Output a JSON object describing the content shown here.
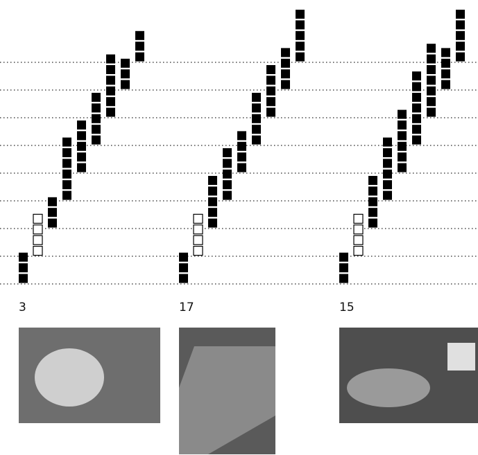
{
  "groups": [
    {
      "label": "3",
      "columns": [
        {
          "count": 3,
          "hollow": false
        },
        {
          "count": 4,
          "hollow": true
        },
        {
          "count": 3,
          "hollow": false
        },
        {
          "count": 6,
          "hollow": false
        },
        {
          "count": 5,
          "hollow": false
        },
        {
          "count": 5,
          "hollow": false
        },
        {
          "count": 6,
          "hollow": false
        },
        {
          "count": 3,
          "hollow": false
        },
        {
          "count": 3,
          "hollow": false
        }
      ]
    },
    {
      "label": "17",
      "columns": [
        {
          "count": 3,
          "hollow": false
        },
        {
          "count": 4,
          "hollow": true
        },
        {
          "count": 5,
          "hollow": false
        },
        {
          "count": 5,
          "hollow": false
        },
        {
          "count": 4,
          "hollow": false
        },
        {
          "count": 5,
          "hollow": false
        },
        {
          "count": 5,
          "hollow": false
        },
        {
          "count": 4,
          "hollow": false
        },
        {
          "count": 5,
          "hollow": false
        }
      ]
    },
    {
      "label": "15",
      "columns": [
        {
          "count": 3,
          "hollow": false
        },
        {
          "count": 4,
          "hollow": true
        },
        {
          "count": 5,
          "hollow": false
        },
        {
          "count": 6,
          "hollow": false
        },
        {
          "count": 6,
          "hollow": false
        },
        {
          "count": 7,
          "hollow": false
        },
        {
          "count": 7,
          "hollow": false
        },
        {
          "count": 4,
          "hollow": false
        },
        {
          "count": 5,
          "hollow": false
        }
      ]
    }
  ]
}
